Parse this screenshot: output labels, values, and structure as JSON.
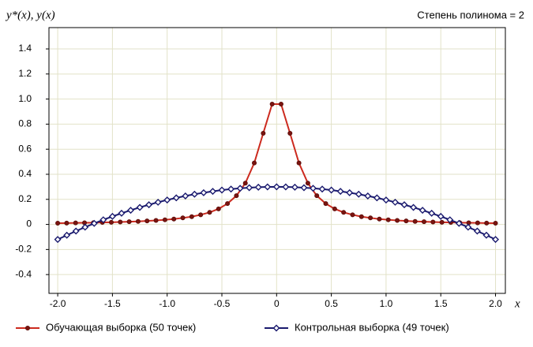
{
  "chart_data": {
    "type": "line",
    "y_label": "y*(x), y(x)",
    "x_label": "x",
    "annotation": "Степень полинома = 2",
    "xlim": [
      -2.08,
      2.09
    ],
    "ylim": [
      -0.55,
      1.57
    ],
    "xticks": [
      {
        "value": -2,
        "label": "-2.0"
      },
      -1.5,
      {
        "value": -1,
        "label": "-1.0"
      },
      -0.5,
      0,
      0.5,
      {
        "value": 1,
        "label": "1.0"
      },
      1.5,
      {
        "value": 2,
        "label": "2.0"
      }
    ],
    "yticks": [
      -0.4,
      -0.2,
      0,
      0.2,
      0.4,
      0.6,
      0.8,
      {
        "value": 1,
        "label": "1.0"
      },
      1.2,
      1.4
    ],
    "grid": true,
    "series": [
      {
        "name": "Обучающая выборка (50 точек)",
        "color": "#cc2a1e",
        "marker": "circle",
        "x": [
          -2,
          -1.9184,
          -1.8367,
          -1.7551,
          -1.6735,
          -1.5918,
          -1.5102,
          -1.4286,
          -1.3469,
          -1.2653,
          -1.1837,
          -1.102,
          -1.0204,
          -0.9388,
          -0.8571,
          -0.7755,
          -0.6939,
          -0.6122,
          -0.5306,
          -0.449,
          -0.3673,
          -0.2857,
          -0.2041,
          -0.1224,
          -0.0408,
          0.0408,
          0.1224,
          0.2041,
          0.2857,
          0.3673,
          0.449,
          0.5306,
          0.6122,
          0.6939,
          0.7755,
          0.8571,
          0.9388,
          1.0204,
          1.102,
          1.1837,
          1.2653,
          1.3469,
          1.4286,
          1.5102,
          1.5918,
          1.6735,
          1.7551,
          1.8367,
          1.9184,
          2
        ],
        "values": [
          0.01,
          0.011,
          0.012,
          0.013,
          0.014,
          0.016,
          0.017,
          0.019,
          0.022,
          0.024,
          0.028,
          0.032,
          0.037,
          0.043,
          0.052,
          0.062,
          0.077,
          0.096,
          0.124,
          0.166,
          0.229,
          0.329,
          0.49,
          0.727,
          0.96,
          0.96,
          0.727,
          0.49,
          0.329,
          0.229,
          0.166,
          0.124,
          0.096,
          0.077,
          0.062,
          0.052,
          0.043,
          0.037,
          0.032,
          0.028,
          0.024,
          0.022,
          0.019,
          0.017,
          0.016,
          0.014,
          0.013,
          0.012,
          0.011,
          0.01
        ]
      },
      {
        "name": "Контрольная выборка (49 точек)",
        "color": "#1a1a6e",
        "marker": "diamond",
        "x": [
          -2,
          -1.9167,
          -1.8333,
          -1.75,
          -1.6667,
          -1.5833,
          -1.5,
          -1.4167,
          -1.3333,
          -1.25,
          -1.1667,
          -1.0833,
          -1,
          -0.9167,
          -0.8333,
          -0.75,
          -0.6667,
          -0.5833,
          -0.5,
          -0.4167,
          -0.3333,
          -0.25,
          -0.1667,
          -0.0833,
          0,
          0.0833,
          0.1667,
          0.25,
          0.3333,
          0.4167,
          0.5,
          0.5833,
          0.6667,
          0.75,
          0.8333,
          0.9167,
          1,
          1.0833,
          1.1667,
          1.25,
          1.3333,
          1.4167,
          1.5,
          1.5833,
          1.6667,
          1.75,
          1.8333,
          1.9167,
          2
        ],
        "values": [
          -0.12,
          -0.086,
          -0.053,
          -0.022,
          0.008,
          0.037,
          0.064,
          0.089,
          0.113,
          0.136,
          0.157,
          0.177,
          0.195,
          0.212,
          0.227,
          0.241,
          0.253,
          0.264,
          0.274,
          0.282,
          0.288,
          0.293,
          0.297,
          0.299,
          0.3,
          0.299,
          0.297,
          0.293,
          0.288,
          0.282,
          0.274,
          0.264,
          0.253,
          0.241,
          0.227,
          0.212,
          0.195,
          0.177,
          0.157,
          0.136,
          0.113,
          0.089,
          0.064,
          0.037,
          0.008,
          -0.022,
          -0.053,
          -0.086,
          -0.12
        ]
      }
    ]
  }
}
